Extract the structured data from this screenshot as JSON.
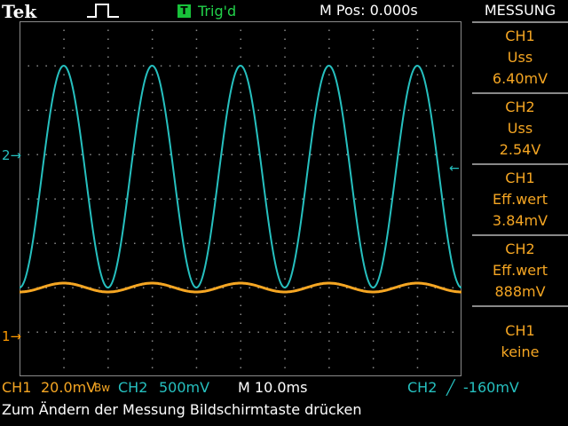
{
  "header": {
    "brand": "Tek",
    "trigger_badge": "T",
    "trigger_status": "Trig'd",
    "mpos": "M Pos: 0.000s",
    "menu_title": "MESSUNG"
  },
  "colors": {
    "ch1": "#f5a623",
    "ch2": "#26c0bf",
    "grid": "#8a8a8a",
    "trigger": "#22d24a"
  },
  "markers": {
    "ch1": "1",
    "ch2": "2",
    "ch1_arrow": "→",
    "ch2_arrow": "→",
    "trigger_pos_icon": "▼",
    "trigger_level_icon": "←"
  },
  "measurements": [
    {
      "line1": "CH1",
      "line2": "Uss",
      "line3": "6.40mV"
    },
    {
      "line1": "CH2",
      "line2": "Uss",
      "line3": "2.54V"
    },
    {
      "line1": "CH1",
      "line2": "Eff.wert",
      "line3": "3.84mV"
    },
    {
      "line1": "CH2",
      "line2": "Eff.wert",
      "line3": "888mV"
    },
    {
      "line1": "CH1",
      "line2": "keine",
      "line3": ""
    }
  ],
  "status": {
    "ch1_label": "CH1",
    "ch1_scale": "20.0mV",
    "ch1_bw": "Bw",
    "ch2_label": "CH2",
    "ch2_scale": "500mV",
    "timebase": "M 10.0ms",
    "trig_source": "CH2",
    "trig_slope": "╱",
    "trig_level": "-160mV"
  },
  "hint": "Zum Ändern der Messung Bildschirmtaste drücken",
  "chart_data": {
    "type": "line",
    "xlabel": "",
    "ylabel": "",
    "grid": true,
    "series": [
      {
        "name": "CH2",
        "shape": "sine",
        "cycles": 5,
        "amplitude_div": 2.5,
        "offset_div": 0.5
      },
      {
        "name": "CH1",
        "shape": "sine",
        "cycles": 5,
        "amplitude_div": 0.1,
        "offset_div": -2.0
      }
    ]
  }
}
